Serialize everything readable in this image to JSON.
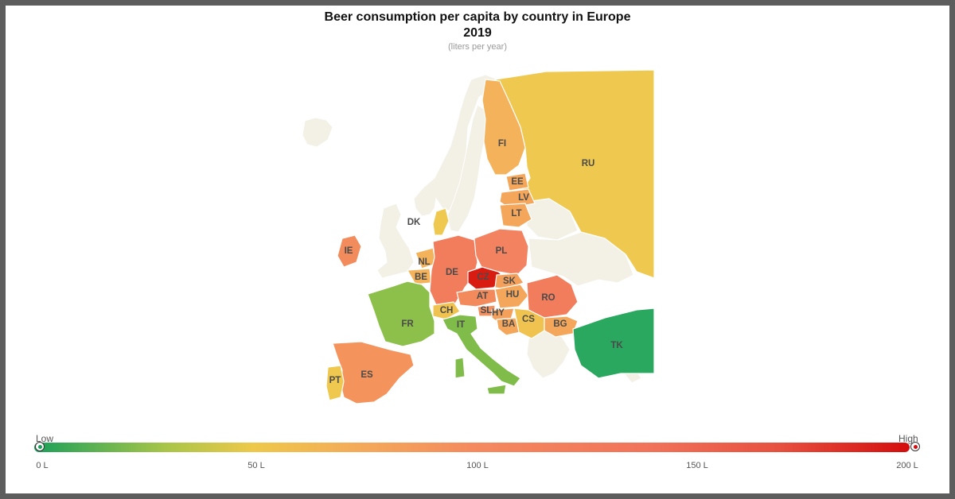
{
  "title_line1": "Beer consumption per capita by country in Europe",
  "title_line2": "2019",
  "subtitle": "(liters per year)",
  "legend": {
    "low_label": "Low",
    "high_label": "High",
    "ticks": [
      "0 L",
      "50 L",
      "100 L",
      "150 L",
      "200 L"
    ],
    "range": [
      0,
      200
    ],
    "colors": [
      "#1aa05a",
      "#eec84a",
      "#f48a5e",
      "#d40d0d"
    ]
  },
  "colors": {
    "no_data": "#f3f0e6",
    "border": "#ffffff"
  },
  "countries": [
    {
      "code": "RU",
      "label": "RU",
      "color": "#efc850"
    },
    {
      "code": "FI",
      "label": "FI",
      "color": "#f4b25a"
    },
    {
      "code": "EE",
      "label": "EE",
      "color": "#f4a65a"
    },
    {
      "code": "LV",
      "label": "LV",
      "color": "#f4a65a"
    },
    {
      "code": "LT",
      "label": "LT",
      "color": "#f4a65a"
    },
    {
      "code": "DK",
      "label": "DK",
      "color": "#efc850"
    },
    {
      "code": "IE",
      "label": "IE",
      "color": "#f28c5c"
    },
    {
      "code": "NL",
      "label": "NL",
      "color": "#f4b25a"
    },
    {
      "code": "BE",
      "label": "BE",
      "color": "#f4b25a"
    },
    {
      "code": "DE",
      "label": "DE",
      "color": "#f27d5c"
    },
    {
      "code": "PL",
      "label": "PL",
      "color": "#f28260"
    },
    {
      "code": "CZ",
      "label": "CZ",
      "color": "#d91c12"
    },
    {
      "code": "SK",
      "label": "SK",
      "color": "#f4a05a"
    },
    {
      "code": "AT",
      "label": "AT",
      "color": "#f28a5c"
    },
    {
      "code": "HU",
      "label": "HU",
      "color": "#f4a65a"
    },
    {
      "code": "RO",
      "label": "RO",
      "color": "#f27d5c"
    },
    {
      "code": "CH",
      "label": "CH",
      "color": "#f0c24f"
    },
    {
      "code": "SL",
      "label": "SL",
      "color": "#f29060"
    },
    {
      "code": "HY",
      "label": "HY",
      "color": "#f4a05a"
    },
    {
      "code": "BA",
      "label": "BA",
      "color": "#f4a65a"
    },
    {
      "code": "CS",
      "label": "CS",
      "color": "#f0c24f"
    },
    {
      "code": "BG",
      "label": "BG",
      "color": "#f4a65a"
    },
    {
      "code": "FR",
      "label": "FR",
      "color": "#8dc04a"
    },
    {
      "code": "IT",
      "label": "IT",
      "color": "#80bc4a"
    },
    {
      "code": "TK",
      "label": "TK",
      "color": "#2aa85f"
    },
    {
      "code": "ES",
      "label": "ES",
      "color": "#f4945c"
    },
    {
      "code": "PT",
      "label": "PT",
      "color": "#efc850"
    }
  ]
}
